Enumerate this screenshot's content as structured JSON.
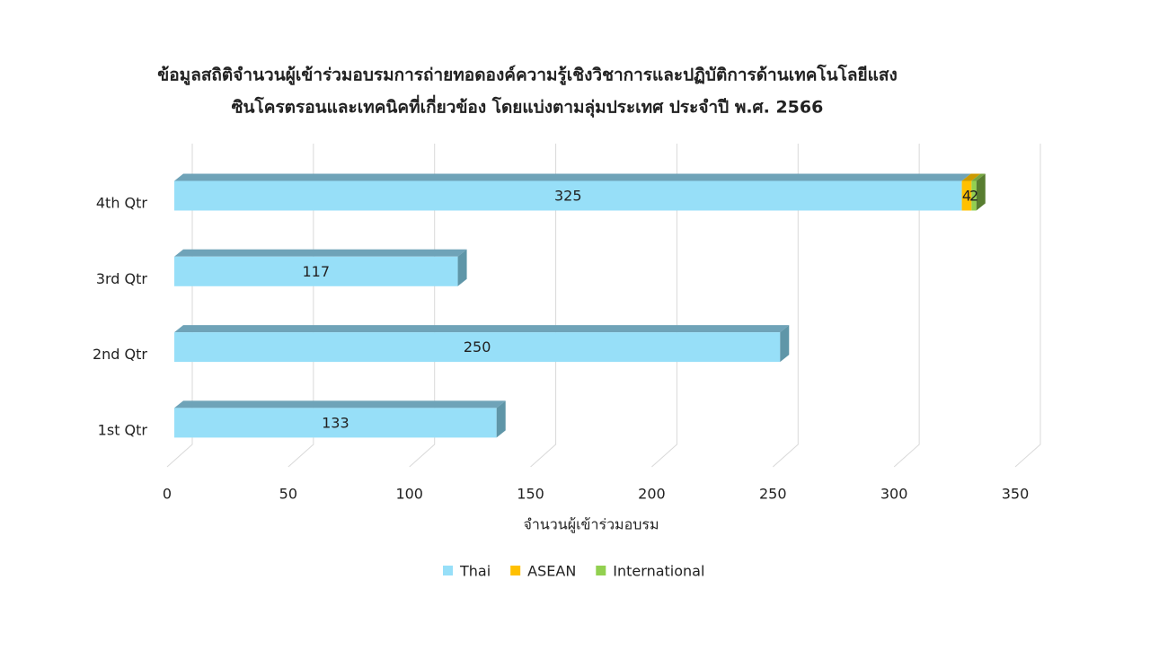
{
  "chart_data": {
    "type": "bar3d-stacked-horizontal",
    "title": [
      "ข้อมูลสถิติจำนวนผู้เข้าร่วมอบรมการถ่ายทอดองค์ความรู้เชิงวิชาการและปฏิบัติการด้านเทคโนโลยีแสง",
      "ซินโครตรอนและเทคนิคที่เกี่ยวข้อง โดยแบ่งตามลุ่มประเทศ ประจำปี พ.ศ. 2566"
    ],
    "x_label": "จำนวนผู้เข้าร่วมอบรม",
    "categories": [
      "1st Qtr",
      "2nd Qtr",
      "3rd Qtr",
      "4th Qtr"
    ],
    "series": [
      {
        "name": "Thai",
        "color": "#97dff8",
        "values": [
          133,
          250,
          117,
          325
        ]
      },
      {
        "name": "ASEAN",
        "color": "#ffc000",
        "values": [
          null,
          null,
          null,
          4
        ]
      },
      {
        "name": "International",
        "color": "#92d050",
        "values": [
          null,
          null,
          null,
          2
        ]
      }
    ],
    "xlim": [
      0,
      350
    ],
    "xticks": [
      0,
      50,
      100,
      150,
      200,
      250,
      300,
      350
    ],
    "grid": true,
    "legend": "bottom"
  }
}
